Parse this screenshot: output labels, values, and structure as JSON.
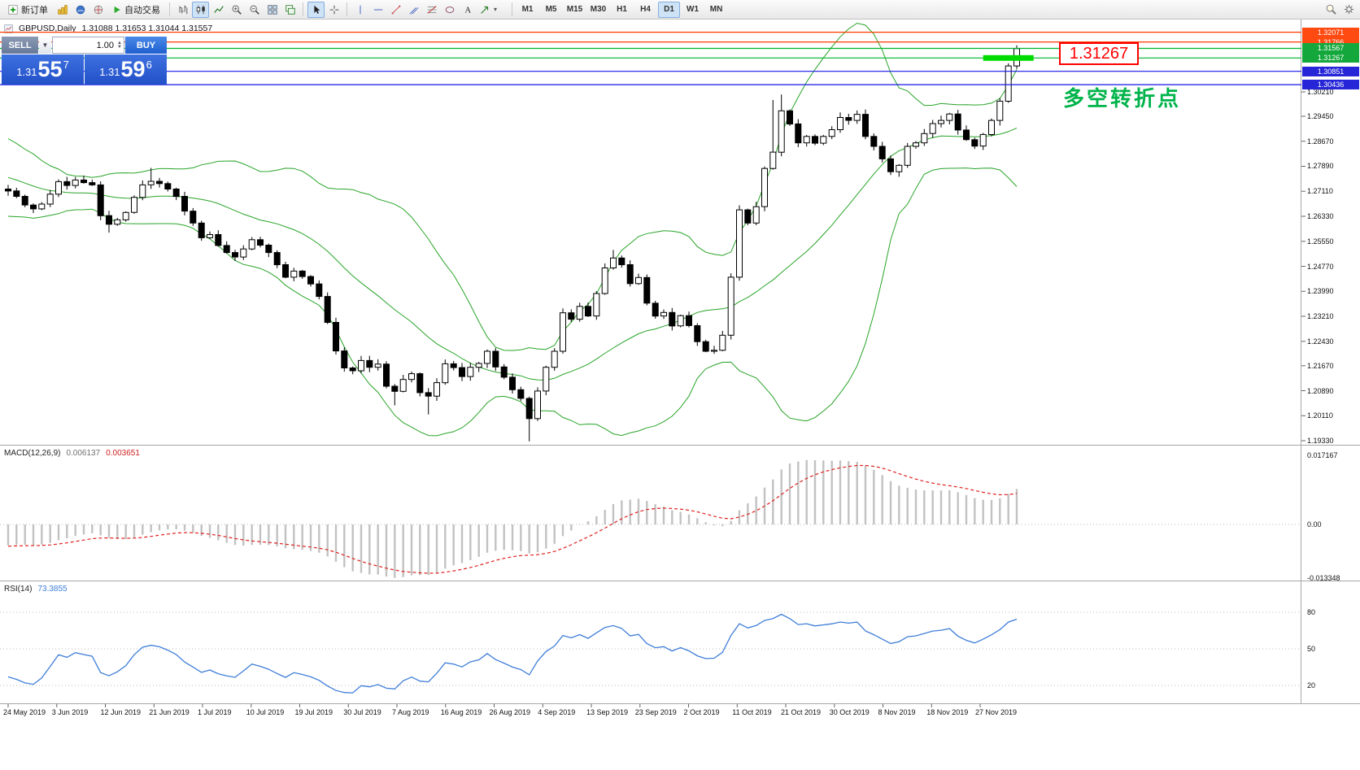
{
  "toolbar": {
    "new_order_label": "新订单",
    "autotrading_label": "自动交易",
    "timeframes": [
      "M1",
      "M5",
      "M15",
      "M30",
      "H1",
      "H4",
      "D1",
      "W1",
      "MN"
    ],
    "active_timeframe": "D1"
  },
  "window": {
    "symbol_title": "GBPUSD,Daily",
    "ohlc": "1.31088 1.31653 1.31044 1.31557"
  },
  "trade_panel": {
    "sell_label": "SELL",
    "buy_label": "BUY",
    "volume": "1.00",
    "bid_small": "1.31",
    "bid_big": "55",
    "bid_sup": "7",
    "ask_small": "1.31",
    "ask_big": "59",
    "ask_sup": "6"
  },
  "annotations": {
    "price_box_label": "1.31267",
    "turning_point_note": "多空转折点"
  },
  "hlines": [
    {
      "price": 1.32071,
      "label": "1.32071",
      "color": "#ff3c00",
      "label_bg": "#ff4a12"
    },
    {
      "price": 1.31766,
      "label": "1.31766",
      "color": "#ff3c00",
      "label_bg": "#ff4a12"
    },
    {
      "price": 1.31567,
      "label": "1.31567",
      "color": "#00b22d",
      "label_bg": "#14a83c"
    },
    {
      "price": 1.31267,
      "label": "1.31267",
      "color": "#00b22d",
      "label_bg": "#14a83c"
    },
    {
      "price": 1.30851,
      "label": "1.30851",
      "color": "#1414e6",
      "label_bg": "#2626d8"
    },
    {
      "price": 1.30436,
      "label": "1.30436",
      "color": "#1414e6",
      "label_bg": "#2626d8"
    }
  ],
  "highlight_segment": {
    "price": 1.31267,
    "from_candle": 116,
    "to_candle": 122,
    "color": "#00dc00"
  },
  "chart_data": {
    "type": "candlestick",
    "symbol": "GBPUSD",
    "period": "Daily",
    "overlay_indicator": "Bollinger Bands",
    "bollinger": {
      "period": 20,
      "deviation": 2
    },
    "pre_closes": [
      1.2948,
      1.2921,
      1.2907,
      1.2892,
      1.2901,
      1.2873,
      1.2856,
      1.2862,
      1.2839,
      1.2842,
      1.2811,
      1.2793,
      1.2801,
      1.2768,
      1.2742,
      1.2751,
      1.2722,
      1.2711,
      1.2698,
      1.2687,
      1.2702,
      1.2691,
      1.2681,
      1.2695,
      1.2718
    ],
    "closes": [
      1.2712,
      1.2695,
      1.2668,
      1.2656,
      1.2671,
      1.2702,
      1.2741,
      1.2729,
      1.2746,
      1.2738,
      1.2731,
      1.2635,
      1.2608,
      1.2622,
      1.2645,
      1.2692,
      1.2731,
      1.2742,
      1.2735,
      1.2718,
      1.2695,
      1.2649,
      1.2612,
      1.2566,
      1.2576,
      1.2542,
      1.252,
      1.2506,
      1.2531,
      1.256,
      1.2543,
      1.252,
      1.2482,
      1.2443,
      1.2462,
      1.2445,
      1.2422,
      1.2383,
      1.2302,
      1.2213,
      1.216,
      1.2151,
      1.2183,
      1.2162,
      1.2172,
      1.2103,
      1.2087,
      1.2124,
      1.2142,
      1.2083,
      1.2072,
      1.2114,
      1.2173,
      1.2161,
      1.2133,
      1.2162,
      1.2174,
      1.2212,
      1.2163,
      1.2131,
      1.2092,
      1.2065,
      1.2002,
      1.2088,
      1.2162,
      1.2212,
      1.2332,
      1.2312,
      1.2352,
      1.2322,
      1.2392,
      1.2472,
      1.2503,
      1.2482,
      1.2423,
      1.2442,
      1.2362,
      1.2322,
      1.2333,
      1.2291,
      1.2323,
      1.2292,
      1.2242,
      1.2212,
      1.2215,
      1.2262,
      1.2443,
      1.2653,
      1.2612,
      1.2663,
      1.2782,
      1.2833,
      1.2962,
      1.2921,
      1.2862,
      1.2882,
      1.2861,
      1.2882,
      1.2903,
      1.2941,
      1.2932,
      1.2951,
      1.2882,
      1.2851,
      1.2812,
      1.2772,
      1.2792,
      1.2851,
      1.2862,
      1.2891,
      1.2922,
      1.2932,
      1.2952,
      1.2902,
      1.2872,
      1.2852,
      1.2888,
      1.2932,
      1.2992,
      1.3102,
      1.3156
    ],
    "spikes": {
      "12": {
        "low": 1.2582
      },
      "17": {
        "high": 1.2784
      },
      "46": {
        "low": 1.2043
      },
      "50": {
        "low": 1.2015
      },
      "62": {
        "low": 1.1931
      },
      "72": {
        "high": 1.2528
      },
      "91": {
        "high": 1.2996
      },
      "92": {
        "high": 1.3013
      },
      "119": {
        "high": 1.311
      },
      "120": {
        "high": 1.3166
      }
    },
    "y_ticks": [
      "1.30210",
      "1.29450",
      "1.28670",
      "1.27890",
      "1.27110",
      "1.26330",
      "1.25550",
      "1.24770",
      "1.23990",
      "1.23210",
      "1.22430",
      "1.21670",
      "1.20890",
      "1.20110",
      "1.19330"
    ],
    "x_ticks": [
      "24 May 2019",
      "3 Jun 2019",
      "12 Jun 2019",
      "21 Jun 2019",
      "1 Jul 2019",
      "10 Jul 2019",
      "19 Jul 2019",
      "30 Jul 2019",
      "7 Aug 2019",
      "16 Aug 2019",
      "26 Aug 2019",
      "4 Sep 2019",
      "13 Sep 2019",
      "23 Sep 2019",
      "2 Oct 2019",
      "11 Oct 2019",
      "21 Oct 2019",
      "30 Oct 2019",
      "8 Nov 2019",
      "18 Nov 2019",
      "27 Nov 2019"
    ]
  },
  "indicators": {
    "macd": {
      "name": "MACD(12,26,9)",
      "main_value": "0.006137",
      "signal_value": "0.003651",
      "scale_ticks": [
        "0.017167",
        "0.00",
        "-0.013348"
      ],
      "params": {
        "fast": 12,
        "slow": 26,
        "signal": 9
      }
    },
    "rsi": {
      "name": "RSI(14)",
      "value": "73.3855",
      "period": 14,
      "levels": [
        "80",
        "50",
        "20"
      ]
    }
  }
}
